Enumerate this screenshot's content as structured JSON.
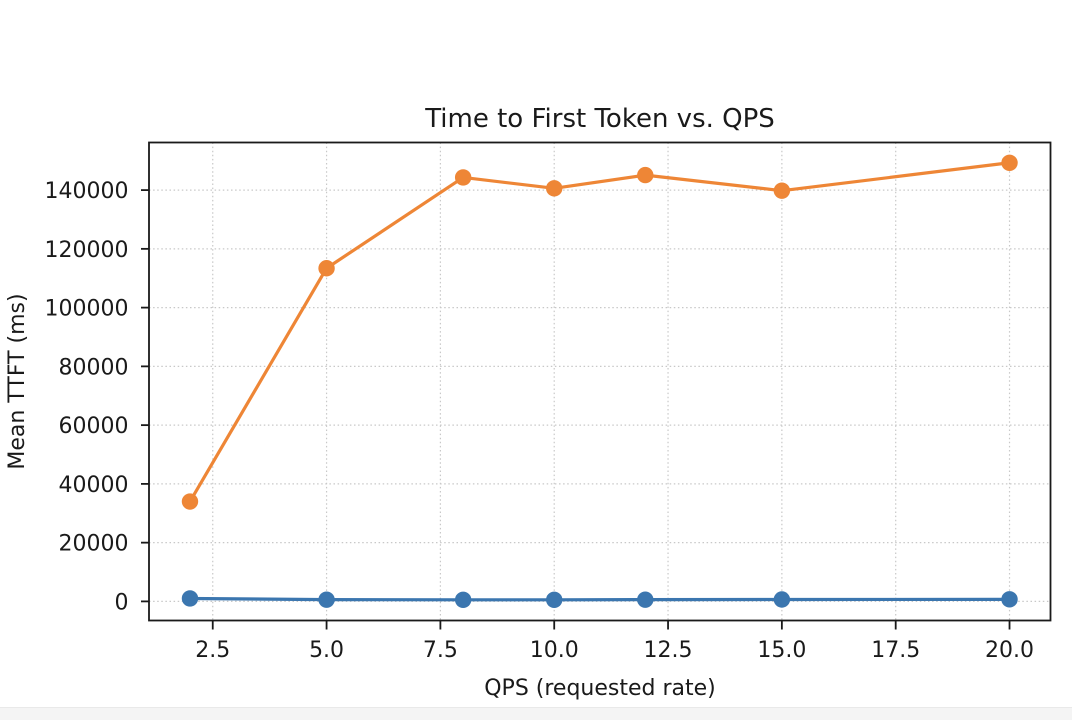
{
  "chart_data": {
    "type": "line",
    "title": "Time to First Token vs. QPS",
    "xlabel": "QPS (requested rate)",
    "ylabel": "Mean TTFT (ms)",
    "x": [
      2,
      5,
      8,
      10,
      12,
      15,
      20
    ],
    "series": [
      {
        "name": "blue",
        "color": "#3b76af",
        "values": [
          1000,
          600,
          550,
          550,
          600,
          650,
          700
        ]
      },
      {
        "name": "orange",
        "color": "#ee8636",
        "values": [
          34000,
          113400,
          144300,
          140600,
          145100,
          139800,
          149300
        ]
      }
    ],
    "xticks": [
      2.5,
      5,
      7.5,
      10,
      12.5,
      15,
      17.5,
      20
    ],
    "xtick_labels": [
      "2.5",
      "5.0",
      "7.5",
      "10.0",
      "12.5",
      "15.0",
      "17.5",
      "20.0"
    ],
    "yticks": [
      0,
      20000,
      40000,
      60000,
      80000,
      100000,
      120000,
      140000
    ],
    "ytick_labels": [
      "0",
      "20000",
      "40000",
      "60000",
      "80000",
      "100000",
      "120000",
      "140000"
    ],
    "xlim": [
      1.1,
      20.9
    ],
    "ylim": [
      -6500,
      156200
    ],
    "grid": true,
    "grid_style": "dotted",
    "legend": false,
    "marker": "circle",
    "marker_radius": 8.2,
    "line_width": 3.2
  },
  "colors": {
    "blue_series": "#3b76af",
    "orange_series": "#ee8636",
    "grid": "#c8c8c8",
    "spine": "#1a1a1a",
    "text": "#1a1a1a",
    "bottom_bar": "#f4f4f4"
  }
}
